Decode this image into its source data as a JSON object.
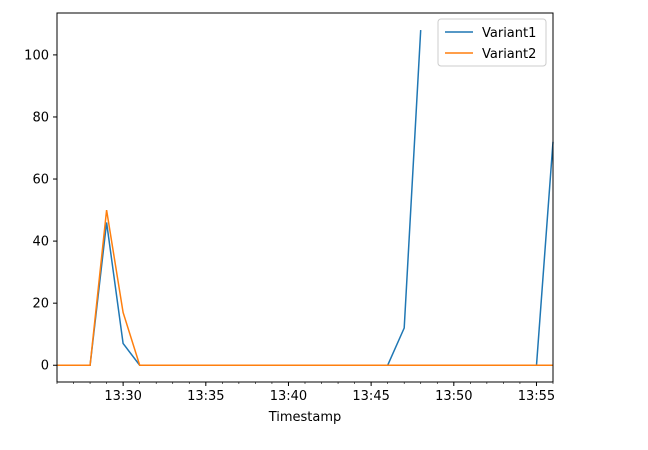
{
  "chart_data": {
    "type": "line",
    "title": "",
    "xlabel": "Timestamp",
    "ylabel": "",
    "x": [
      "13:26",
      "13:27",
      "13:28",
      "13:29",
      "13:30",
      "13:31",
      "13:32",
      "13:33",
      "13:34",
      "13:35",
      "13:36",
      "13:37",
      "13:38",
      "13:39",
      "13:40",
      "13:41",
      "13:42",
      "13:43",
      "13:44",
      "13:45",
      "13:46",
      "13:47",
      "13:48",
      "13:49",
      "13:50",
      "13:51",
      "13:52",
      "13:53",
      "13:54",
      "13:55",
      "13:56"
    ],
    "xlim": [
      "13:26",
      "13:56"
    ],
    "ylim": [
      -5.4,
      113.5
    ],
    "xticks": [
      "13:30",
      "13:35",
      "13:40",
      "13:45",
      "13:50",
      "13:55"
    ],
    "yticks": [
      0,
      20,
      40,
      60,
      80,
      100
    ],
    "grid": false,
    "legend_position": "top-right",
    "series": [
      {
        "name": "Variant1",
        "color": "#1f77b4",
        "values": [
          0,
          0,
          0,
          46,
          7,
          0,
          0,
          0,
          0,
          0,
          0,
          0,
          0,
          0,
          0,
          0,
          0,
          0,
          0,
          0,
          0,
          12,
          108,
          null,
          0,
          0,
          0,
          0,
          0,
          0,
          72
        ]
      },
      {
        "name": "Variant2",
        "color": "#ff7f0e",
        "values": [
          0,
          0,
          0,
          50,
          17,
          0,
          0,
          0,
          0,
          0,
          0,
          0,
          0,
          0,
          0,
          0,
          0,
          0,
          0,
          0,
          0,
          0,
          0,
          0,
          0,
          0,
          0,
          0,
          0,
          0,
          0
        ]
      }
    ]
  }
}
